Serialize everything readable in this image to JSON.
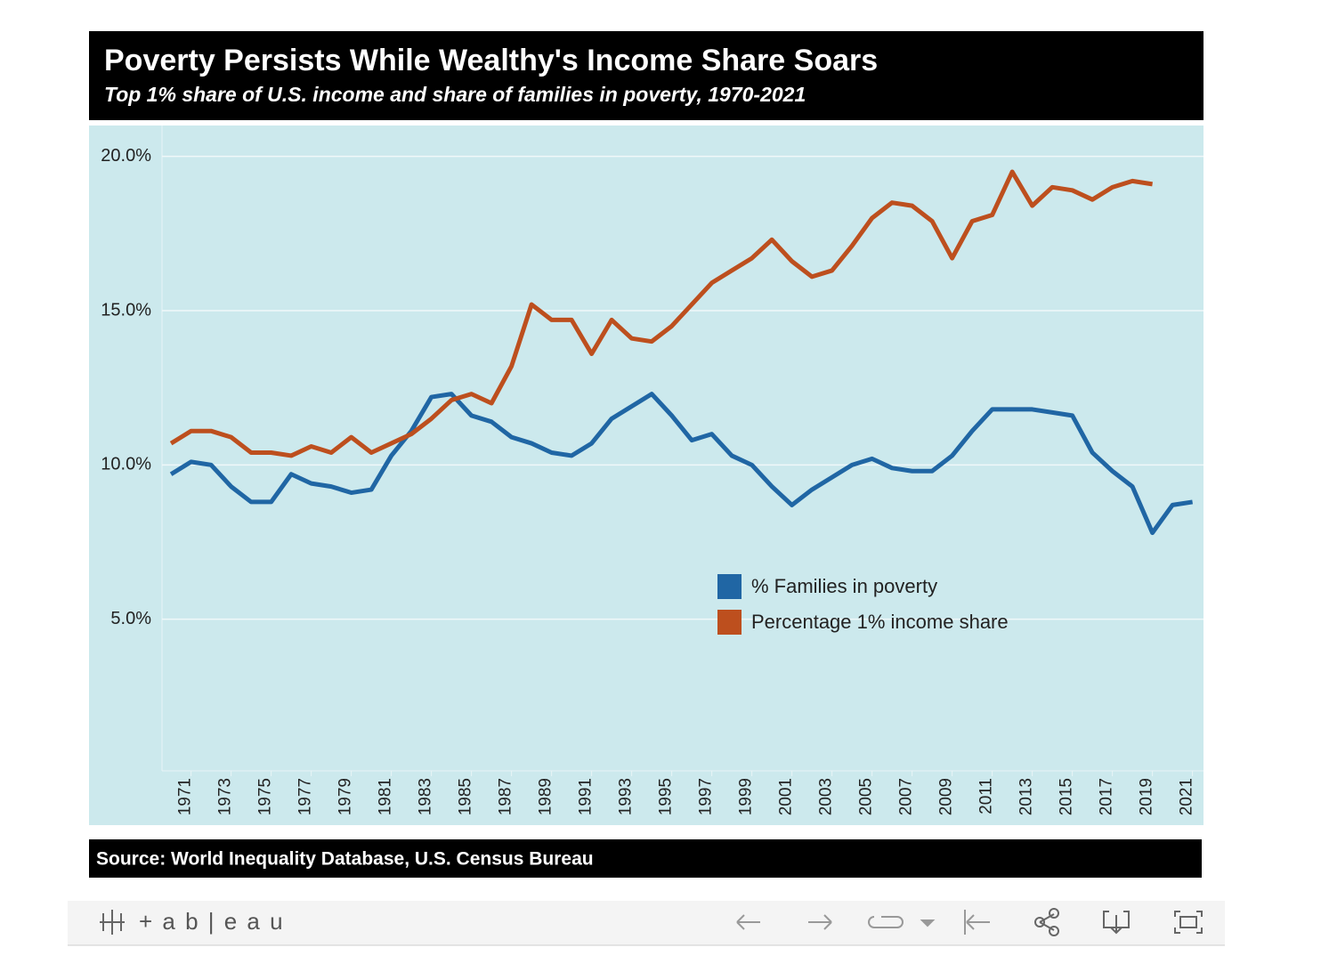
{
  "chart_data": {
    "type": "line",
    "title": "Poverty Persists While Wealthy's Income Share Soars",
    "subtitle": "Top 1% share of U.S. income and share of families in poverty, 1970-2021",
    "source": "Source: World Inequality Database, U.S. Census Bureau",
    "x": [
      1970,
      1971,
      1972,
      1973,
      1974,
      1975,
      1976,
      1977,
      1978,
      1979,
      1980,
      1981,
      1982,
      1983,
      1984,
      1985,
      1986,
      1987,
      1988,
      1989,
      1990,
      1991,
      1992,
      1993,
      1994,
      1995,
      1996,
      1997,
      1998,
      1999,
      2000,
      2001,
      2002,
      2003,
      2004,
      2005,
      2006,
      2007,
      2008,
      2009,
      2010,
      2011,
      2012,
      2013,
      2014,
      2015,
      2016,
      2017,
      2018,
      2019,
      2020,
      2021
    ],
    "series": [
      {
        "name": "% Families in poverty",
        "color": "#2066a4",
        "values": [
          9.7,
          10.1,
          10.0,
          9.3,
          8.8,
          8.8,
          9.7,
          9.4,
          9.3,
          9.1,
          9.2,
          10.3,
          11.1,
          12.2,
          12.3,
          11.6,
          11.4,
          10.9,
          10.7,
          10.4,
          10.3,
          10.7,
          11.5,
          11.9,
          12.3,
          11.6,
          10.8,
          11.0,
          10.3,
          10.0,
          9.3,
          8.7,
          9.2,
          9.6,
          10.0,
          10.2,
          9.9,
          9.8,
          9.8,
          10.3,
          11.1,
          11.8,
          11.8,
          11.8,
          11.7,
          11.6,
          10.4,
          9.8,
          9.3,
          7.8,
          8.7,
          8.8
        ]
      },
      {
        "name": "Percentage 1% income share",
        "color": "#bd4f1e",
        "values": [
          10.7,
          11.1,
          11.1,
          10.9,
          10.4,
          10.4,
          10.3,
          10.6,
          10.4,
          10.9,
          10.4,
          10.7,
          11.0,
          11.5,
          12.1,
          12.3,
          12.0,
          13.2,
          15.2,
          14.7,
          14.7,
          13.6,
          14.7,
          14.1,
          14.0,
          14.5,
          15.2,
          15.9,
          16.3,
          16.7,
          17.3,
          16.6,
          16.1,
          16.3,
          17.1,
          18.0,
          18.5,
          18.4,
          17.9,
          16.7,
          17.9,
          18.1,
          19.5,
          18.4,
          19.0,
          18.9,
          18.6,
          19.0,
          19.2,
          19.1,
          null,
          null
        ]
      }
    ],
    "xlim": [
      1969.55,
      2021.55
    ],
    "xticks": [
      1971,
      1973,
      1975,
      1977,
      1979,
      1981,
      1983,
      1985,
      1987,
      1989,
      1991,
      1993,
      1995,
      1997,
      1999,
      2001,
      2003,
      2005,
      2007,
      2009,
      2011,
      2013,
      2015,
      2017,
      2019,
      2021
    ],
    "ylim": [
      0,
      21
    ],
    "yticks": [
      {
        "value": 5,
        "label": "5.0%"
      },
      {
        "value": 10,
        "label": "10.0%"
      },
      {
        "value": 15,
        "label": "15.0%"
      },
      {
        "value": 20,
        "label": "20.0%"
      }
    ],
    "grid": true,
    "legend": "lower right"
  },
  "toolbar": {
    "brand": "+ a b | e a u"
  }
}
